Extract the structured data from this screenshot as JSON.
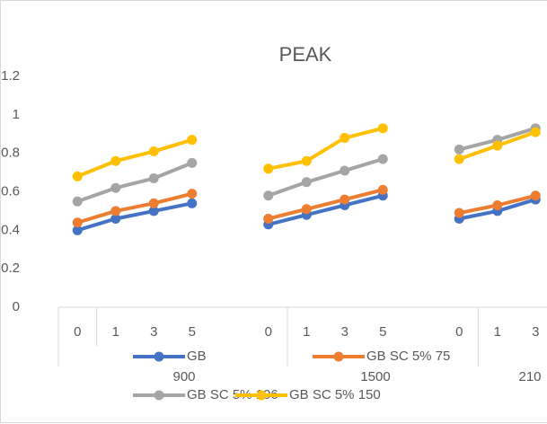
{
  "chart_data": {
    "type": "line",
    "title": "PEAK",
    "categories": [
      "0",
      "1",
      "3",
      "5",
      null,
      "0",
      "1",
      "3",
      "5",
      null,
      "0",
      "1",
      "3"
    ],
    "groups": [
      "900",
      "1500",
      "210"
    ],
    "series": [
      {
        "name": "GB",
        "color": "#4472c4",
        "values": [
          0.4,
          0.46,
          0.5,
          0.54,
          null,
          0.43,
          0.48,
          0.53,
          0.58,
          null,
          0.46,
          0.5,
          0.56
        ]
      },
      {
        "name": "GB SC 5% 75",
        "color": "#ed7d31",
        "values": [
          0.44,
          0.5,
          0.54,
          0.59,
          null,
          0.46,
          0.51,
          0.56,
          0.61,
          null,
          0.49,
          0.53,
          0.58
        ]
      },
      {
        "name": "GB SC 5% 106",
        "color": "#a5a5a5",
        "values": [
          0.55,
          0.62,
          0.67,
          0.75,
          null,
          0.58,
          0.65,
          0.71,
          0.77,
          null,
          0.82,
          0.87,
          0.93
        ]
      },
      {
        "name": "GB SC 5% 150",
        "color": "#ffc000",
        "values": [
          0.68,
          0.76,
          0.81,
          0.87,
          null,
          0.72,
          0.76,
          0.88,
          0.93,
          null,
          0.77,
          0.84,
          0.91
        ]
      }
    ],
    "ylim": [
      0,
      1.2
    ],
    "yticks": [
      0,
      0.2,
      0.4,
      0.6,
      0.8,
      1,
      1.2
    ],
    "grid": false
  }
}
